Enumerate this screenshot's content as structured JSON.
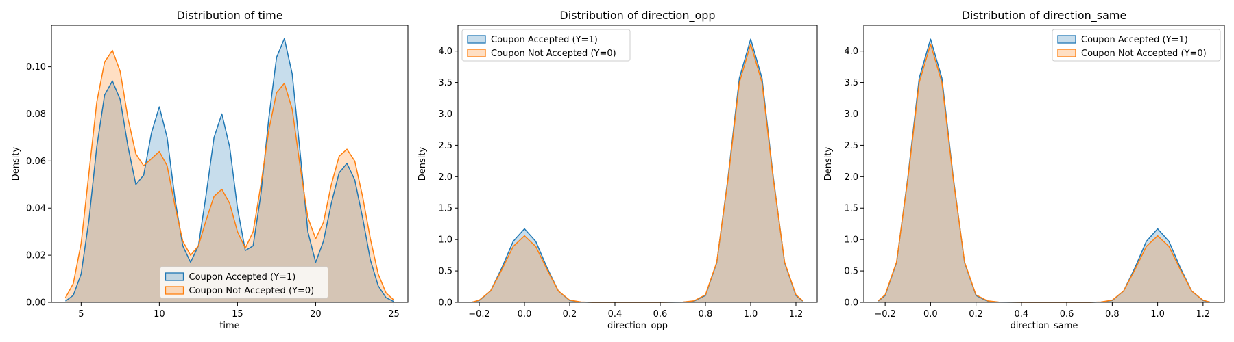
{
  "colors": {
    "accepted": "#1f77b4",
    "not_accepted": "#ff7f0e"
  },
  "chart_data": [
    {
      "type": "area",
      "title": "Distribution of time",
      "xlabel": "time",
      "ylabel": "Density",
      "xlim": [
        3.1,
        25.9
      ],
      "ylim": [
        0,
        0.1176
      ],
      "xticks": [
        5,
        10,
        15,
        20,
        25
      ],
      "yticks": [
        0.0,
        0.02,
        0.04,
        0.06,
        0.08,
        0.1
      ],
      "ytick_decimals": 2,
      "legend": "lower-center",
      "series": [
        {
          "name": "Coupon Accepted (Y=1)",
          "color": "#1f77b4",
          "x": [
            4.0,
            4.5,
            5.0,
            5.5,
            6.0,
            6.5,
            7.0,
            7.5,
            8.0,
            8.5,
            9.0,
            9.5,
            10.0,
            10.5,
            11.0,
            11.5,
            12.0,
            12.5,
            13.0,
            13.5,
            14.0,
            14.5,
            15.0,
            15.5,
            16.0,
            16.5,
            17.0,
            17.5,
            18.0,
            18.5,
            19.0,
            19.5,
            20.0,
            20.5,
            21.0,
            21.5,
            22.0,
            22.5,
            23.0,
            23.5,
            24.0,
            24.5,
            25.0
          ],
          "y": [
            0.0005,
            0.003,
            0.012,
            0.035,
            0.066,
            0.088,
            0.094,
            0.086,
            0.066,
            0.05,
            0.054,
            0.072,
            0.083,
            0.07,
            0.044,
            0.024,
            0.017,
            0.024,
            0.046,
            0.07,
            0.08,
            0.066,
            0.04,
            0.022,
            0.024,
            0.046,
            0.078,
            0.104,
            0.112,
            0.097,
            0.064,
            0.03,
            0.017,
            0.026,
            0.042,
            0.055,
            0.059,
            0.052,
            0.036,
            0.018,
            0.007,
            0.002,
            0.0003
          ]
        },
        {
          "name": "Coupon Not Accepted (Y=0)",
          "color": "#ff7f0e",
          "x": [
            4.0,
            4.5,
            5.0,
            5.5,
            6.0,
            6.5,
            7.0,
            7.5,
            8.0,
            8.5,
            9.0,
            9.5,
            10.0,
            10.5,
            11.0,
            11.5,
            12.0,
            12.5,
            13.0,
            13.5,
            14.0,
            14.5,
            15.0,
            15.5,
            16.0,
            16.5,
            17.0,
            17.5,
            18.0,
            18.5,
            19.0,
            19.5,
            20.0,
            20.5,
            21.0,
            21.5,
            22.0,
            22.5,
            23.0,
            23.5,
            24.0,
            24.5,
            25.0
          ],
          "y": [
            0.002,
            0.008,
            0.025,
            0.055,
            0.085,
            0.102,
            0.107,
            0.098,
            0.078,
            0.063,
            0.058,
            0.061,
            0.064,
            0.058,
            0.041,
            0.026,
            0.02,
            0.024,
            0.035,
            0.045,
            0.048,
            0.042,
            0.03,
            0.023,
            0.03,
            0.05,
            0.073,
            0.089,
            0.093,
            0.082,
            0.058,
            0.036,
            0.027,
            0.034,
            0.05,
            0.062,
            0.065,
            0.06,
            0.045,
            0.027,
            0.012,
            0.004,
            0.001
          ]
        }
      ]
    },
    {
      "type": "area",
      "title": "Distribution of direction_opp",
      "xlabel": "direction_opp",
      "ylabel": "Density",
      "xlim": [
        -0.294,
        1.294
      ],
      "ylim": [
        0,
        4.41
      ],
      "xticks": [
        -0.2,
        0.0,
        0.2,
        0.4,
        0.6,
        0.8,
        1.0,
        1.2
      ],
      "yticks": [
        0.0,
        0.5,
        1.0,
        1.5,
        2.0,
        2.5,
        3.0,
        3.5,
        4.0
      ],
      "ytick_decimals": 1,
      "legend": "upper-left",
      "series": [
        {
          "name": "Coupon Accepted (Y=1)",
          "color": "#1f77b4",
          "x": [
            -0.23,
            -0.2,
            -0.15,
            -0.1,
            -0.05,
            0.0,
            0.05,
            0.1,
            0.15,
            0.2,
            0.25,
            0.3,
            0.4,
            0.5,
            0.6,
            0.7,
            0.75,
            0.8,
            0.85,
            0.9,
            0.95,
            1.0,
            1.05,
            1.1,
            1.15,
            1.2,
            1.23
          ],
          "y": [
            0.004,
            0.03,
            0.18,
            0.55,
            0.97,
            1.17,
            0.97,
            0.55,
            0.18,
            0.03,
            0.004,
            0.0,
            0.0,
            0.0,
            0.0,
            0.003,
            0.02,
            0.11,
            0.63,
            1.99,
            3.57,
            4.19,
            3.57,
            1.99,
            0.63,
            0.11,
            0.02
          ]
        },
        {
          "name": "Coupon Not Accepted (Y=0)",
          "color": "#ff7f0e",
          "x": [
            -0.23,
            -0.2,
            -0.15,
            -0.1,
            -0.05,
            0.0,
            0.05,
            0.1,
            0.15,
            0.2,
            0.25,
            0.3,
            0.4,
            0.5,
            0.6,
            0.7,
            0.75,
            0.8,
            0.85,
            0.9,
            0.95,
            1.0,
            1.05,
            1.1,
            1.15,
            1.2,
            1.23
          ],
          "y": [
            0.005,
            0.035,
            0.18,
            0.52,
            0.89,
            1.06,
            0.89,
            0.52,
            0.18,
            0.035,
            0.005,
            0.0,
            0.0,
            0.0,
            0.0,
            0.004,
            0.025,
            0.12,
            0.64,
            1.96,
            3.5,
            4.11,
            3.5,
            1.96,
            0.64,
            0.12,
            0.025
          ]
        }
      ]
    },
    {
      "type": "area",
      "title": "Distribution of direction_same",
      "xlabel": "direction_same",
      "ylabel": "Density",
      "xlim": [
        -0.294,
        1.294
      ],
      "ylim": [
        0,
        4.41
      ],
      "xticks": [
        -0.2,
        0.0,
        0.2,
        0.4,
        0.6,
        0.8,
        1.0,
        1.2
      ],
      "yticks": [
        0.0,
        0.5,
        1.0,
        1.5,
        2.0,
        2.5,
        3.0,
        3.5,
        4.0
      ],
      "ytick_decimals": 1,
      "legend": "upper-right",
      "series": [
        {
          "name": "Coupon Accepted (Y=1)",
          "color": "#1f77b4",
          "x": [
            -0.23,
            -0.2,
            -0.15,
            -0.1,
            -0.05,
            0.0,
            0.05,
            0.1,
            0.15,
            0.2,
            0.25,
            0.3,
            0.4,
            0.5,
            0.6,
            0.7,
            0.75,
            0.8,
            0.85,
            0.9,
            0.95,
            1.0,
            1.05,
            1.1,
            1.15,
            1.2,
            1.23
          ],
          "y": [
            0.02,
            0.11,
            0.63,
            1.99,
            3.57,
            4.19,
            3.57,
            1.99,
            0.63,
            0.11,
            0.02,
            0.003,
            0.0,
            0.0,
            0.0,
            0.0,
            0.004,
            0.03,
            0.18,
            0.55,
            0.97,
            1.17,
            0.97,
            0.55,
            0.18,
            0.03,
            0.004
          ]
        },
        {
          "name": "Coupon Not Accepted (Y=0)",
          "color": "#ff7f0e",
          "x": [
            -0.23,
            -0.2,
            -0.15,
            -0.1,
            -0.05,
            0.0,
            0.05,
            0.1,
            0.15,
            0.2,
            0.25,
            0.3,
            0.4,
            0.5,
            0.6,
            0.7,
            0.75,
            0.8,
            0.85,
            0.9,
            0.95,
            1.0,
            1.05,
            1.1,
            1.15,
            1.2,
            1.23
          ],
          "y": [
            0.025,
            0.12,
            0.64,
            1.96,
            3.5,
            4.11,
            3.5,
            1.96,
            0.64,
            0.12,
            0.025,
            0.004,
            0.0,
            0.0,
            0.0,
            0.0,
            0.005,
            0.035,
            0.18,
            0.52,
            0.89,
            1.06,
            0.89,
            0.52,
            0.18,
            0.035,
            0.005
          ]
        }
      ]
    }
  ]
}
